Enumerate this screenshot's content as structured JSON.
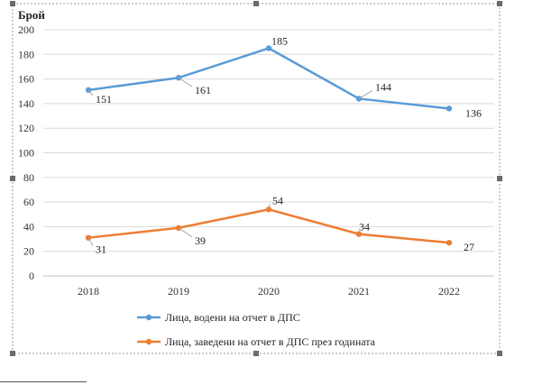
{
  "chart_data": {
    "type": "line",
    "ylabel": "Брой",
    "categories": [
      "2018",
      "2019",
      "2020",
      "2021",
      "2022"
    ],
    "ylim": [
      0,
      200
    ],
    "yticks": [
      0,
      20,
      40,
      60,
      80,
      100,
      120,
      140,
      160,
      180,
      200
    ],
    "grid": true,
    "legend_position": "bottom",
    "series": [
      {
        "name": "Лица, водени на отчет в ДПС",
        "values": [
          151,
          161,
          185,
          144,
          136
        ],
        "color": "#5b9bd5"
      },
      {
        "name": "Лица, заведени на отчет в ДПС през годината",
        "values": [
          31,
          39,
          54,
          34,
          27
        ],
        "color": "#ed7d31"
      }
    ]
  }
}
